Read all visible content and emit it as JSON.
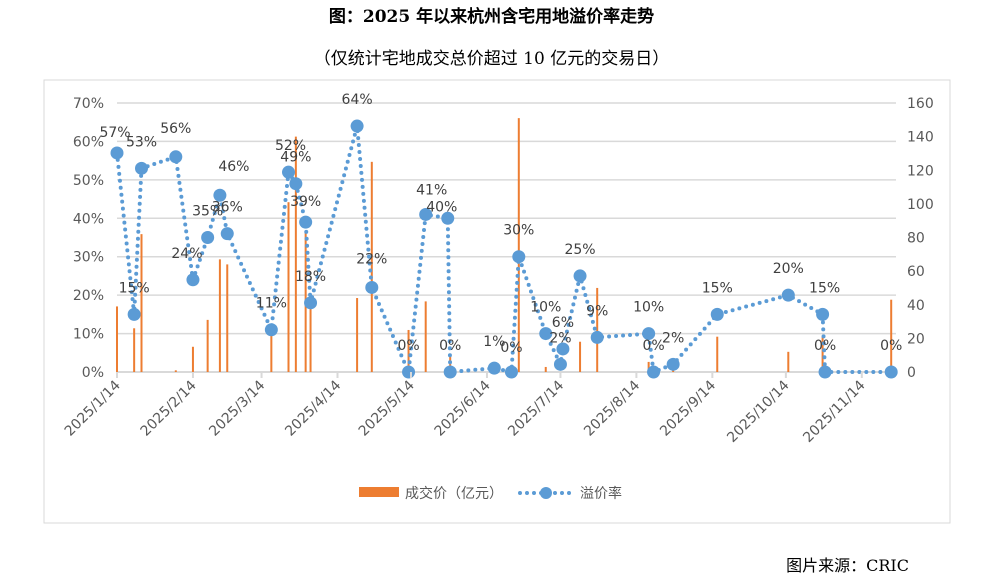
{
  "title": "图：2025 年以来杭州含宅用地溢价率走势",
  "subtitle": "（仅统计宅地成交总价超过 10 亿元的交易日）",
  "source": "图片来源：CRIC",
  "chart_data": {
    "type": "bar+line",
    "title": "图：2025 年以来杭州含宅用地溢价率走势",
    "subtitle": "（仅统计宅地成交总价超过 10 亿元的交易日）",
    "x_axis": {
      "type": "date",
      "ticks": [
        "2025/1/14",
        "2025/2/14",
        "2025/3/14",
        "2025/4/14",
        "2025/5/14",
        "2025/6/14",
        "2025/7/14",
        "2025/8/14",
        "2025/9/14",
        "2025/10/14",
        "2025/11/14"
      ]
    },
    "y_left": {
      "range": [
        0,
        70
      ],
      "unit": "%",
      "ticks": [
        "0%",
        "10%",
        "20%",
        "30%",
        "40%",
        "50%",
        "60%",
        "70%"
      ]
    },
    "y_right": {
      "range": [
        0,
        160
      ],
      "ticks": [
        "0",
        "20",
        "40",
        "60",
        "80",
        "100",
        "120",
        "140",
        "160"
      ]
    },
    "grid": true,
    "legend": {
      "position": "bottom",
      "items": [
        "成交价（亿元）",
        "溢价率"
      ]
    },
    "colors": {
      "bar": "#ED7D31",
      "line": "#5B9BD5",
      "grid": "#D9D9D9"
    },
    "series": [
      {
        "name": "成交价（亿元）",
        "type": "bar",
        "axis": "right",
        "points": [
          [
            "2025-01-14",
            39
          ],
          [
            "2025-01-21",
            26
          ],
          [
            "2025-01-24",
            82
          ],
          [
            "2025-02-07",
            1
          ],
          [
            "2025-02-14",
            15
          ],
          [
            "2025-02-20",
            31
          ],
          [
            "2025-02-25",
            67
          ],
          [
            "2025-02-28",
            64
          ],
          [
            "2025-03-18",
            25
          ],
          [
            "2025-03-25",
            101
          ],
          [
            "2025-03-28",
            140
          ],
          [
            "2025-04-01",
            83
          ],
          [
            "2025-04-03",
            41
          ],
          [
            "2025-04-22",
            44
          ],
          [
            "2025-04-28",
            125
          ],
          [
            "2025-05-13",
            25
          ],
          [
            "2025-05-20",
            42
          ],
          [
            "2025-05-30",
            11
          ],
          [
            "2025-06-27",
            151
          ],
          [
            "2025-07-08",
            3
          ],
          [
            "2025-07-22",
            18
          ],
          [
            "2025-07-29",
            50
          ],
          [
            "2025-08-19",
            6
          ],
          [
            "2025-08-29",
            4
          ],
          [
            "2025-09-16",
            21
          ],
          [
            "2025-10-15",
            12
          ],
          [
            "2025-10-29",
            21
          ],
          [
            "2025-11-26",
            43
          ]
        ]
      },
      {
        "name": "溢价率",
        "type": "line",
        "axis": "left",
        "points": [
          [
            "2025-01-14",
            57
          ],
          [
            "2025-01-21",
            15
          ],
          [
            "2025-01-24",
            53
          ],
          [
            "2025-02-07",
            56
          ],
          [
            "2025-02-14",
            24
          ],
          [
            "2025-02-20",
            35
          ],
          [
            "2025-02-25",
            46
          ],
          [
            "2025-02-28",
            36
          ],
          [
            "2025-03-18",
            11
          ],
          [
            "2025-03-25",
            52
          ],
          [
            "2025-03-28",
            49
          ],
          [
            "2025-04-01",
            39
          ],
          [
            "2025-04-03",
            18
          ],
          [
            "2025-04-22",
            64
          ],
          [
            "2025-04-28",
            22
          ],
          [
            "2025-05-13",
            0
          ],
          [
            "2025-05-20",
            41
          ],
          [
            "2025-05-29",
            40
          ],
          [
            "2025-05-30",
            0
          ],
          [
            "2025-06-17",
            1
          ],
          [
            "2025-06-24",
            0
          ],
          [
            "2025-06-27",
            30
          ],
          [
            "2025-07-08",
            10
          ],
          [
            "2025-07-14",
            2
          ],
          [
            "2025-07-15",
            6
          ],
          [
            "2025-07-22",
            25
          ],
          [
            "2025-07-29",
            9
          ],
          [
            "2025-08-19",
            10
          ],
          [
            "2025-08-21",
            0
          ],
          [
            "2025-08-29",
            2
          ],
          [
            "2025-09-16",
            15
          ],
          [
            "2025-10-15",
            20
          ],
          [
            "2025-10-29",
            15
          ],
          [
            "2025-10-30",
            0
          ],
          [
            "2025-11-26",
            0
          ]
        ]
      }
    ]
  }
}
